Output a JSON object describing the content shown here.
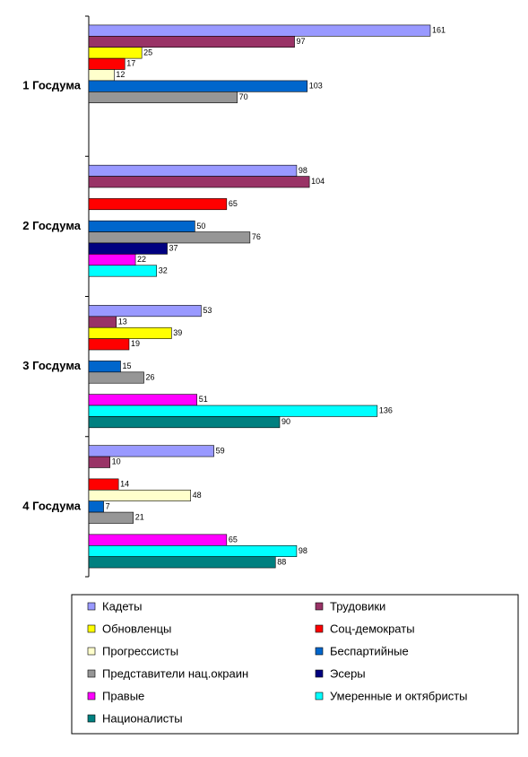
{
  "chart_data": {
    "type": "bar",
    "orientation": "horizontal",
    "categories": [
      "1 Госдума",
      "2 Госдума",
      "3 Госдума",
      "4 Госдума"
    ],
    "series": [
      {
        "name": "Кадеты",
        "color": "#9999ff",
        "values": [
          161,
          98,
          53,
          59
        ]
      },
      {
        "name": "Трудовики",
        "color": "#993366",
        "values": [
          97,
          104,
          13,
          10
        ]
      },
      {
        "name": "Обновленцы",
        "color": "#ffff00",
        "values": [
          25,
          null,
          39,
          null
        ]
      },
      {
        "name": "Соц-демократы",
        "color": "#ff0000",
        "values": [
          17,
          65,
          19,
          14
        ]
      },
      {
        "name": "Прогрессисты",
        "color": "#ffffcc",
        "values": [
          12,
          null,
          null,
          48
        ]
      },
      {
        "name": "Беспартийные",
        "color": "#0066cc",
        "values": [
          103,
          50,
          15,
          7
        ]
      },
      {
        "name": "Представители нац.окраин",
        "color": "#969696",
        "values": [
          70,
          76,
          26,
          21
        ]
      },
      {
        "name": "Эсеры",
        "color": "#000080",
        "values": [
          null,
          37,
          null,
          null
        ]
      },
      {
        "name": "Правые",
        "color": "#ff00ff",
        "values": [
          null,
          22,
          51,
          65
        ]
      },
      {
        "name": "Умеренные и октябристы",
        "color": "#00ffff",
        "values": [
          null,
          32,
          136,
          98
        ]
      },
      {
        "name": "Националисты",
        "color": "#008080",
        "values": [
          null,
          null,
          90,
          88
        ]
      }
    ]
  }
}
